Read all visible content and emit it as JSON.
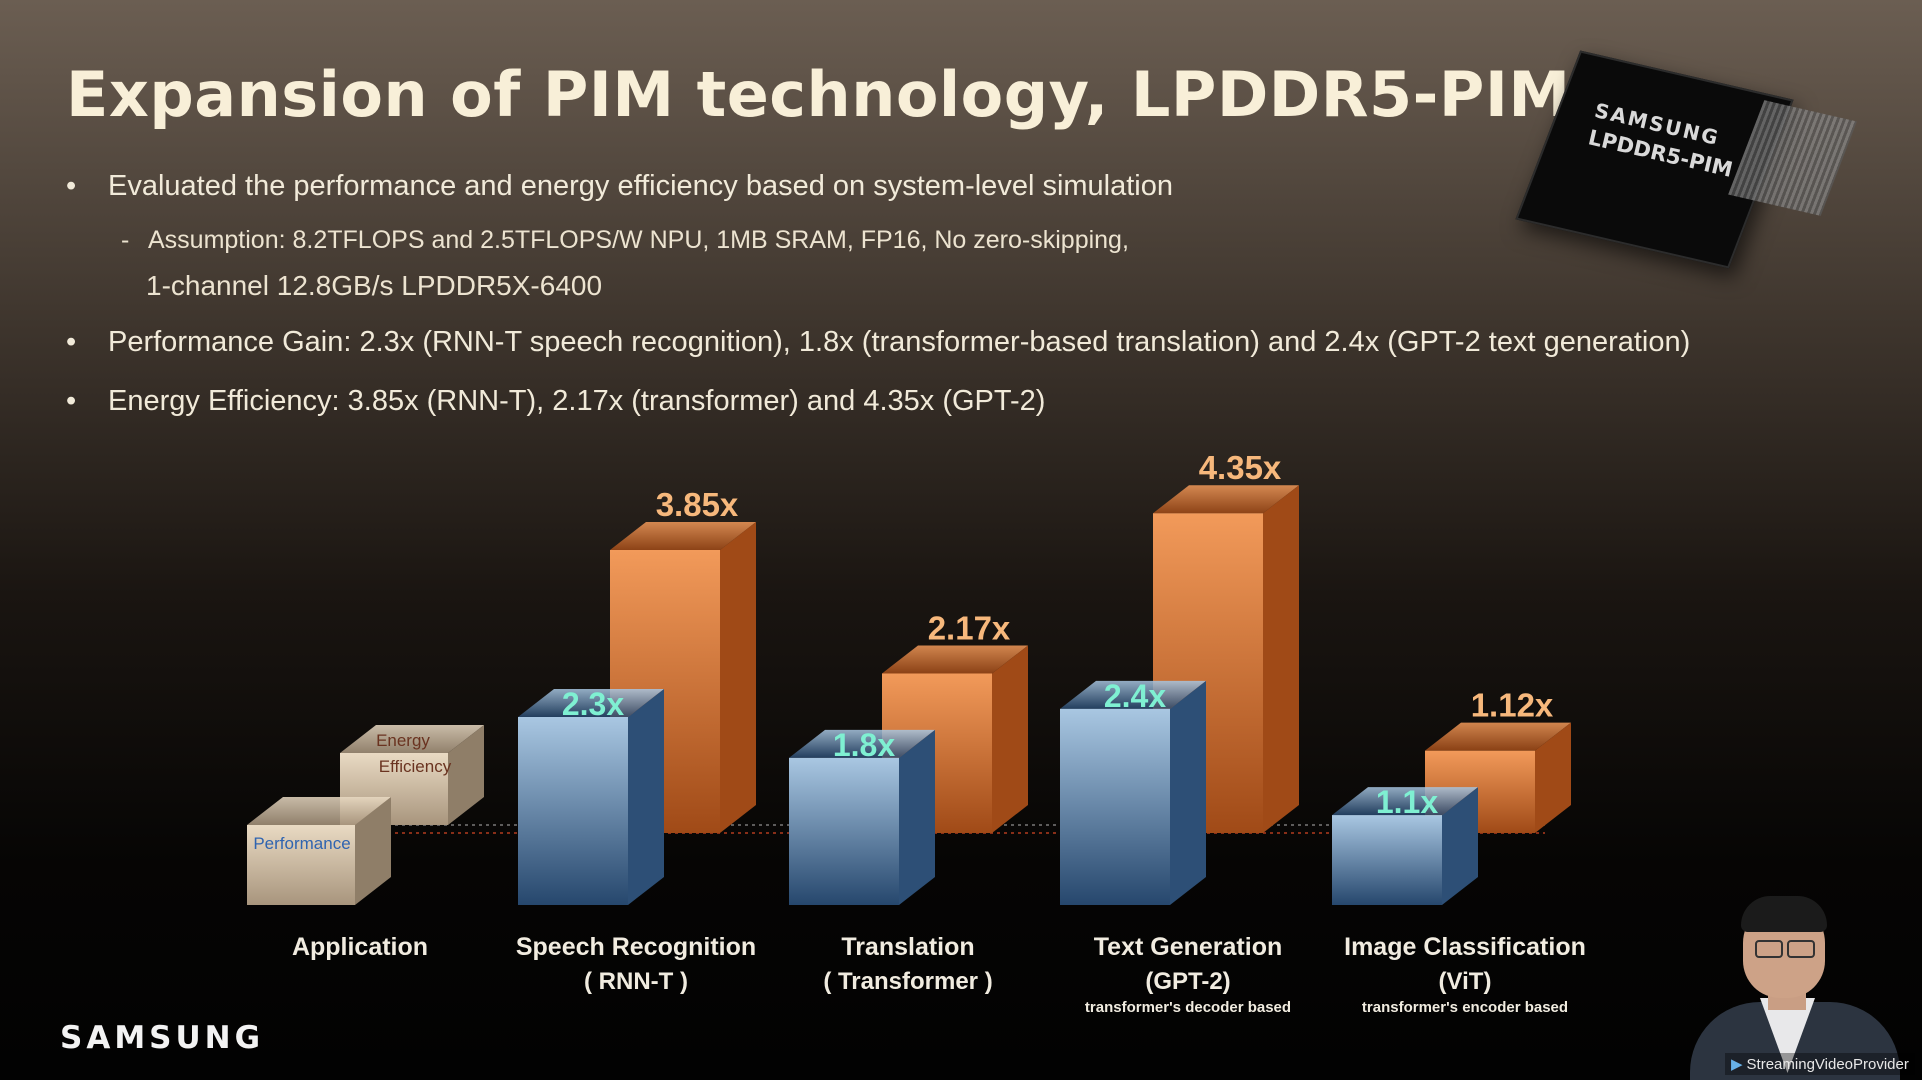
{
  "title": "Expansion of PIM technology, LPDDR5-PIM",
  "bullets": {
    "bullet_glyph": "•",
    "b1": "Evaluated the performance and energy efficiency based on system-level simulation",
    "b1_dash": "-",
    "b1_sub1": "Assumption:  8.2TFLOPS and 2.5TFLOPS/W NPU, 1MB SRAM, FP16, No zero-skipping,",
    "b1_sub2": "1-channel 12.8GB/s LPDDR5X-6400",
    "b2": "Performance Gain: 2.3x (RNN-T speech recognition), 1.8x (transformer-based translation) and  2.4x (GPT-2 text generation)",
    "b3": "Energy Efficiency: 3.85x (RNN-T), 2.17x (transformer) and 4.35x (GPT-2)"
  },
  "chip": {
    "brand": "SAMSUNG",
    "model": "LPDDR5-PIM",
    "icon": "memory-chip-icon"
  },
  "logo": "SAMSUNG",
  "watermark": "StreamingVideoProvider",
  "watermark_icon": "play-circle-icon",
  "colors": {
    "performance_front": "#5e87b2",
    "performance_dark": "#26476d",
    "energy_front": "#ea8a4c",
    "energy_dark": "#a04a17",
    "perf_label": "#7ff0d2",
    "energy_label": "#f7b87c",
    "legend_box": "#d9c8b0"
  },
  "chart_data": {
    "type": "bar",
    "categories": [
      "Speech Recognition",
      "Translation",
      "Text Generation",
      "Image Classification"
    ],
    "category_sublabels": [
      "( RNN-T )",
      "( Transformer )",
      "(GPT-2)",
      "(ViT)"
    ],
    "category_notes": [
      "",
      "",
      "transformer's decoder based",
      "transformer's encoder based"
    ],
    "legend_category": "Application",
    "legend_items": [
      "Performance",
      "Energy Efficiency"
    ],
    "series": [
      {
        "name": "Performance",
        "values": [
          2.3,
          1.8,
          2.4,
          1.1
        ],
        "labels": [
          "2.3x",
          "1.8x",
          "2.4x",
          "1.1x"
        ]
      },
      {
        "name": "Energy Efficiency",
        "values": [
          3.85,
          2.17,
          4.35,
          1.12
        ],
        "labels": [
          "3.85x",
          "2.17x",
          "4.35x",
          "1.12x"
        ]
      }
    ],
    "baseline": 1.0,
    "grid": false,
    "legend_position": "left"
  }
}
